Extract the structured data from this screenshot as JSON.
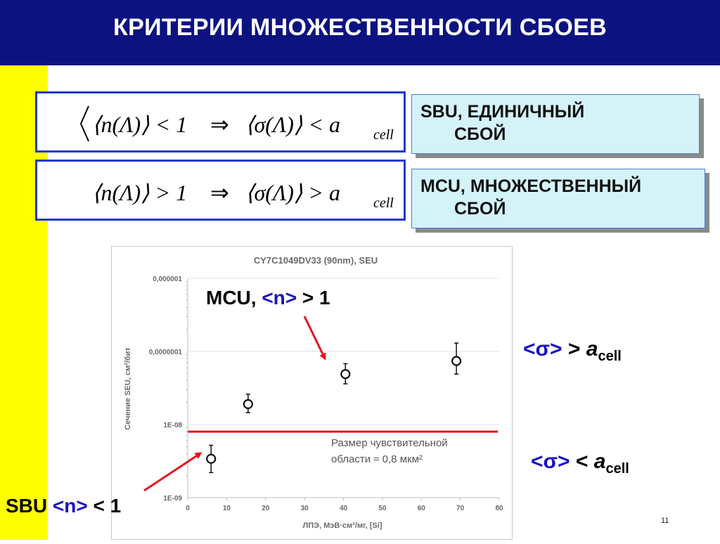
{
  "slide": {
    "title": "КРИТЕРИИ МНОЖЕСТВЕННОСТИ СБОЕВ",
    "page_number": "11"
  },
  "equations": [
    {
      "lhs": "⟨n(Λ)⟩ < 1",
      "implies": "⇒",
      "rhs": "⟨σ(Λ)⟩ < a",
      "subscript": "cell"
    },
    {
      "lhs": "⟨n(Λ)⟩ > 1",
      "implies": "⇒",
      "rhs": "⟨σ(Λ)⟩ > a",
      "subscript": "cell"
    }
  ],
  "criteria": [
    {
      "line1": "SBU, ЕДИНИЧНЫЙ",
      "line2": "СБОЙ"
    },
    {
      "line1": "MCU, МНОЖЕСТВЕННЫЙ",
      "line2": "СБОЙ"
    }
  ],
  "annotations": {
    "mcu": {
      "prefix": "MCU, ",
      "n": "<n>",
      "suffix": " > 1"
    },
    "sbu": {
      "prefix": "SBU ",
      "n": "<n>",
      "suffix": " < 1"
    },
    "sigma_gt": {
      "sigma": "<σ>",
      "rel": " > ",
      "a": "a",
      "sub": "cell"
    },
    "sigma_lt": {
      "sigma": "<σ>",
      "rel": " < ",
      "a": "a",
      "sub": "cell"
    }
  },
  "colors": {
    "title_bg": "#0c1380",
    "side_bar": "#ffff00",
    "accent_blue": "#1a12c4",
    "threshold_line": "#e8141c",
    "arrow": "#e8141c"
  },
  "chart_data": {
    "type": "scatter",
    "title": "CY7C1049DV33 (90nm), SEU",
    "xlabel": "ЛПЭ, МэВ·см²/мг, [Si]",
    "ylabel": "Сечение SEU, см²/бит",
    "x_ticks": [
      "0",
      "10",
      "20",
      "30",
      "40",
      "50",
      "60",
      "70",
      "80"
    ],
    "y_ticks": [
      "1E-09",
      "1E-08",
      "0,0000001",
      "0,000001"
    ],
    "xlim": [
      0,
      80
    ],
    "ylim": [
      1e-09,
      1e-06
    ],
    "y_scale": "log",
    "points": [
      {
        "x": 6,
        "y": 3.4e-09,
        "err_low": 2.2e-09,
        "err_high": 5.2e-09
      },
      {
        "x": 15.5,
        "y": 1.9e-08,
        "err_low": 1.45e-08,
        "err_high": 2.6e-08
      },
      {
        "x": 40.5,
        "y": 4.9e-08,
        "err_low": 3.6e-08,
        "err_high": 6.8e-08
      },
      {
        "x": 69,
        "y": 7.4e-08,
        "err_low": 4.9e-08,
        "err_high": 1.3e-07
      }
    ],
    "threshold": {
      "y": 8e-09,
      "label_line1": "Размер чувствительной",
      "label_line2": "области ≈ 0,8 мкм²"
    }
  }
}
